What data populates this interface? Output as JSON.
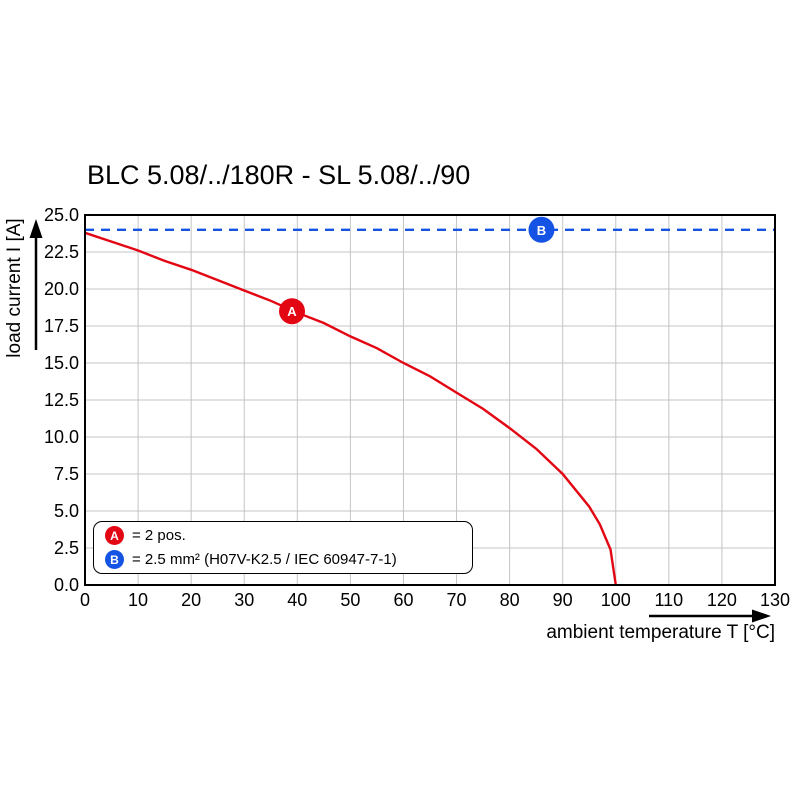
{
  "title": "BLC 5.08/../180R - SL 5.08/../90",
  "chart_data": {
    "type": "line",
    "title": "BLC 5.08/../180R - SL 5.08/../90",
    "xlabel": "ambient temperature T [°C]",
    "ylabel": "load current I [A]",
    "xlim": [
      0,
      130
    ],
    "ylim": [
      0,
      25
    ],
    "x_ticks": [
      0,
      10,
      20,
      30,
      40,
      50,
      60,
      70,
      80,
      90,
      100,
      110,
      120,
      130
    ],
    "y_ticks": [
      0,
      2.5,
      5,
      7.5,
      10,
      12.5,
      15,
      17.5,
      20,
      22.5,
      25
    ],
    "grid": true,
    "grid_color": "#c4c4c4",
    "legend_position": "bottom-left-inside",
    "series": [
      {
        "name": "A",
        "label": "= 2 pos.",
        "color": "#e30613",
        "style": "solid",
        "points": [
          [
            0,
            23.8
          ],
          [
            5,
            23.2
          ],
          [
            10,
            22.6
          ],
          [
            15,
            21.9
          ],
          [
            20,
            21.3
          ],
          [
            25,
            20.6
          ],
          [
            30,
            19.9
          ],
          [
            35,
            19.2
          ],
          [
            40,
            18.4
          ],
          [
            45,
            17.7
          ],
          [
            50,
            16.8
          ],
          [
            55,
            16.0
          ],
          [
            60,
            15.0
          ],
          [
            65,
            14.1
          ],
          [
            70,
            13.0
          ],
          [
            75,
            11.9
          ],
          [
            80,
            10.6
          ],
          [
            85,
            9.2
          ],
          [
            90,
            7.5
          ],
          [
            95,
            5.3
          ],
          [
            97,
            4.1
          ],
          [
            99,
            2.4
          ],
          [
            100,
            0
          ]
        ]
      },
      {
        "name": "B",
        "label": "= 2.5 mm² (H07V-K2.5 / IEC 60947-7-1)",
        "color": "#1453e4",
        "style": "dashed",
        "points": [
          [
            0,
            24
          ],
          [
            130,
            24
          ]
        ]
      }
    ],
    "markers": [
      {
        "label": "A",
        "x": 39,
        "y": 18.5,
        "color": "#e30613"
      },
      {
        "label": "B",
        "x": 86,
        "y": 24,
        "color": "#1453e4"
      }
    ]
  },
  "legend": {
    "items": [
      {
        "badge": "A",
        "text": "= 2 pos.",
        "color": "#e30613"
      },
      {
        "badge": "B",
        "text": "= 2.5 mm² (H07V-K2.5 / IEC 60947-7-1)",
        "color": "#1453e4"
      }
    ]
  }
}
